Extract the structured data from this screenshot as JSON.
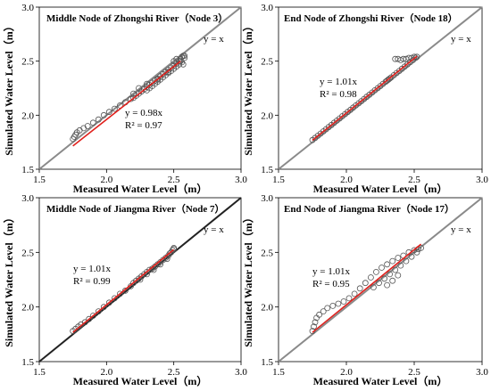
{
  "chart_data": [
    {
      "type": "scatter",
      "title": "Middle Node of Zhongshi River（Node 3）",
      "xlabel": "Measured Water Level（m）",
      "ylabel": "Simulated Water Level（m）",
      "xlim": [
        1.5,
        3.0
      ],
      "ylim": [
        1.5,
        3.0
      ],
      "xticks": [
        "1.5",
        "2.0",
        "2.5",
        "3.0"
      ],
      "yticks": [
        "1.5",
        "2.0",
        "2.5",
        "3.0"
      ],
      "identity_label": "y = x",
      "fit_equation": "y = 0.98x",
      "r2_label": "R² = 0.97",
      "fit_slope": 0.98,
      "fit_range": [
        1.75,
        2.55
      ],
      "grid": false,
      "points": [
        [
          1.75,
          1.78
        ],
        [
          1.76,
          1.8
        ],
        [
          1.77,
          1.82
        ],
        [
          1.78,
          1.84
        ],
        [
          1.8,
          1.86
        ],
        [
          1.83,
          1.88
        ],
        [
          1.86,
          1.9
        ],
        [
          1.9,
          1.93
        ],
        [
          1.94,
          1.96
        ],
        [
          1.98,
          2.0
        ],
        [
          2.02,
          2.03
        ],
        [
          2.06,
          2.06
        ],
        [
          2.1,
          2.09
        ],
        [
          2.14,
          2.12
        ],
        [
          2.18,
          2.15
        ],
        [
          2.2,
          2.16
        ],
        [
          2.22,
          2.18
        ],
        [
          2.24,
          2.2
        ],
        [
          2.26,
          2.22
        ],
        [
          2.28,
          2.24
        ],
        [
          2.3,
          2.26
        ],
        [
          2.32,
          2.28
        ],
        [
          2.34,
          2.3
        ],
        [
          2.36,
          2.32
        ],
        [
          2.38,
          2.34
        ],
        [
          2.4,
          2.36
        ],
        [
          2.42,
          2.38
        ],
        [
          2.44,
          2.4
        ],
        [
          2.46,
          2.42
        ],
        [
          2.48,
          2.44
        ],
        [
          2.5,
          2.46
        ],
        [
          2.52,
          2.48
        ],
        [
          2.54,
          2.5
        ],
        [
          2.55,
          2.52
        ],
        [
          2.56,
          2.54
        ],
        [
          2.57,
          2.55
        ],
        [
          2.58,
          2.53
        ],
        [
          2.56,
          2.49
        ],
        [
          2.54,
          2.47
        ],
        [
          2.52,
          2.45
        ],
        [
          2.5,
          2.43
        ],
        [
          2.48,
          2.41
        ],
        [
          2.46,
          2.39
        ],
        [
          2.44,
          2.37
        ],
        [
          2.42,
          2.35
        ],
        [
          2.4,
          2.33
        ],
        [
          2.38,
          2.31
        ],
        [
          2.36,
          2.29
        ],
        [
          2.34,
          2.27
        ],
        [
          2.32,
          2.25
        ],
        [
          2.3,
          2.23
        ],
        [
          2.26,
          2.22
        ],
        [
          2.2,
          2.2
        ],
        [
          2.24,
          2.25
        ],
        [
          2.3,
          2.29
        ],
        [
          2.38,
          2.33
        ],
        [
          2.46,
          2.4
        ],
        [
          2.5,
          2.5
        ],
        [
          2.52,
          2.52
        ],
        [
          2.55,
          2.5
        ],
        [
          2.58,
          2.55
        ],
        [
          2.57,
          2.47
        ]
      ]
    },
    {
      "type": "scatter",
      "title": "End Node of Zhongshi River（Node 18）",
      "xlabel": "Measured Water Level（m）",
      "ylabel": "Simulated Water Level（m）",
      "xlim": [
        1.5,
        3.0
      ],
      "ylim": [
        1.5,
        3.0
      ],
      "xticks": [
        "1.5",
        "2.0",
        "2.5",
        "3.0"
      ],
      "yticks": [
        "1.5",
        "2.0",
        "2.5",
        "3.0"
      ],
      "identity_label": "y = x",
      "fit_equation": "y = 1.01x",
      "r2_label": "R² = 0.98",
      "fit_slope": 1.01,
      "fit_range": [
        1.75,
        2.52
      ],
      "grid": false,
      "points": [
        [
          1.75,
          1.77
        ],
        [
          1.77,
          1.79
        ],
        [
          1.79,
          1.81
        ],
        [
          1.81,
          1.83
        ],
        [
          1.83,
          1.85
        ],
        [
          1.85,
          1.87
        ],
        [
          1.87,
          1.89
        ],
        [
          1.89,
          1.91
        ],
        [
          1.91,
          1.93
        ],
        [
          1.93,
          1.95
        ],
        [
          1.95,
          1.97
        ],
        [
          1.97,
          1.99
        ],
        [
          1.99,
          2.01
        ],
        [
          2.01,
          2.03
        ],
        [
          2.03,
          2.05
        ],
        [
          2.05,
          2.07
        ],
        [
          2.07,
          2.09
        ],
        [
          2.09,
          2.11
        ],
        [
          2.11,
          2.13
        ],
        [
          2.13,
          2.15
        ],
        [
          2.15,
          2.17
        ],
        [
          2.17,
          2.19
        ],
        [
          2.19,
          2.21
        ],
        [
          2.21,
          2.23
        ],
        [
          2.23,
          2.25
        ],
        [
          2.25,
          2.27
        ],
        [
          2.27,
          2.29
        ],
        [
          2.29,
          2.31
        ],
        [
          2.31,
          2.33
        ],
        [
          2.33,
          2.35
        ],
        [
          2.35,
          2.37
        ],
        [
          2.37,
          2.39
        ],
        [
          2.39,
          2.41
        ],
        [
          2.41,
          2.43
        ],
        [
          2.43,
          2.45
        ],
        [
          2.45,
          2.47
        ],
        [
          2.47,
          2.49
        ],
        [
          2.49,
          2.51
        ],
        [
          2.51,
          2.53
        ],
        [
          2.52,
          2.54
        ],
        [
          2.36,
          2.52
        ],
        [
          2.38,
          2.52
        ],
        [
          2.4,
          2.51
        ],
        [
          2.42,
          2.52
        ],
        [
          2.44,
          2.52
        ],
        [
          2.46,
          2.53
        ],
        [
          2.48,
          2.53
        ],
        [
          2.5,
          2.54
        ],
        [
          2.3,
          2.32
        ],
        [
          2.32,
          2.34
        ]
      ]
    },
    {
      "type": "scatter",
      "title": "Middle Node of Jiangma River（Node 7）",
      "xlabel": "Measured Water Level（m）",
      "ylabel": "Simulated Water Level（m）",
      "xlim": [
        1.5,
        3.0
      ],
      "ylim": [
        1.5,
        3.0
      ],
      "xticks": [
        "1.5",
        "2.0",
        "2.5",
        "3.0"
      ],
      "yticks": [
        "1.5",
        "2.0",
        "2.5",
        "3.0"
      ],
      "identity_label": "y = x",
      "fit_equation": "y = 1.01x",
      "r2_label": "R² = 0.99",
      "fit_slope": 1.01,
      "fit_range": [
        1.75,
        2.5
      ],
      "grid": false,
      "points": [
        [
          1.75,
          1.78
        ],
        [
          1.77,
          1.8
        ],
        [
          1.79,
          1.82
        ],
        [
          1.81,
          1.84
        ],
        [
          1.84,
          1.86
        ],
        [
          1.87,
          1.89
        ],
        [
          1.9,
          1.92
        ],
        [
          1.94,
          1.96
        ],
        [
          1.98,
          2.0
        ],
        [
          2.02,
          2.04
        ],
        [
          2.06,
          2.08
        ],
        [
          2.1,
          2.12
        ],
        [
          2.14,
          2.15
        ],
        [
          2.18,
          2.19
        ],
        [
          2.2,
          2.22
        ],
        [
          2.22,
          2.24
        ],
        [
          2.24,
          2.26
        ],
        [
          2.26,
          2.28
        ],
        [
          2.28,
          2.3
        ],
        [
          2.3,
          2.32
        ],
        [
          2.32,
          2.34
        ],
        [
          2.34,
          2.35
        ],
        [
          2.36,
          2.37
        ],
        [
          2.38,
          2.39
        ],
        [
          2.4,
          2.41
        ],
        [
          2.42,
          2.43
        ],
        [
          2.44,
          2.45
        ],
        [
          2.46,
          2.47
        ],
        [
          2.47,
          2.49
        ],
        [
          2.48,
          2.5
        ],
        [
          2.49,
          2.52
        ],
        [
          2.5,
          2.53
        ],
        [
          2.5,
          2.54
        ],
        [
          2.35,
          2.34
        ],
        [
          2.4,
          2.39
        ],
        [
          2.45,
          2.44
        ],
        [
          2.3,
          2.3
        ],
        [
          2.25,
          2.25
        ]
      ]
    },
    {
      "type": "scatter",
      "title": "End Node of Jiangma River（Node 17）",
      "xlabel": "Measured Water Level（m）",
      "ylabel": "Simulated Water Level（m）",
      "xlim": [
        1.5,
        3.0
      ],
      "ylim": [
        1.5,
        3.0
      ],
      "xticks": [
        "1.5",
        "2.0",
        "2.5",
        "3.0"
      ],
      "yticks": [
        "1.5",
        "2.0",
        "2.5",
        "3.0"
      ],
      "identity_label": "y = x",
      "fit_equation": "y = 1.01x",
      "r2_label": "R² = 0.95",
      "fit_slope": 1.01,
      "fit_range": [
        1.75,
        2.55
      ],
      "grid": false,
      "points": [
        [
          1.75,
          1.78
        ],
        [
          1.76,
          1.82
        ],
        [
          1.77,
          1.86
        ],
        [
          1.78,
          1.9
        ],
        [
          1.8,
          1.93
        ],
        [
          1.83,
          1.96
        ],
        [
          1.86,
          1.99
        ],
        [
          1.9,
          2.01
        ],
        [
          1.94,
          2.03
        ],
        [
          1.98,
          2.05
        ],
        [
          2.02,
          2.08
        ],
        [
          2.06,
          2.12
        ],
        [
          2.1,
          2.17
        ],
        [
          2.14,
          2.22
        ],
        [
          2.18,
          2.27
        ],
        [
          2.22,
          2.32
        ],
        [
          2.26,
          2.36
        ],
        [
          2.3,
          2.39
        ],
        [
          2.34,
          2.42
        ],
        [
          2.38,
          2.45
        ],
        [
          2.42,
          2.47
        ],
        [
          2.46,
          2.5
        ],
        [
          2.5,
          2.52
        ],
        [
          2.53,
          2.53
        ],
        [
          2.55,
          2.54
        ],
        [
          2.2,
          2.18
        ],
        [
          2.24,
          2.22
        ],
        [
          2.28,
          2.26
        ],
        [
          2.32,
          2.3
        ],
        [
          2.36,
          2.34
        ],
        [
          2.4,
          2.38
        ],
        [
          2.44,
          2.42
        ],
        [
          2.48,
          2.46
        ],
        [
          2.52,
          2.5
        ],
        [
          2.3,
          2.2
        ],
        [
          2.34,
          2.24
        ],
        [
          2.38,
          2.29
        ]
      ]
    }
  ]
}
